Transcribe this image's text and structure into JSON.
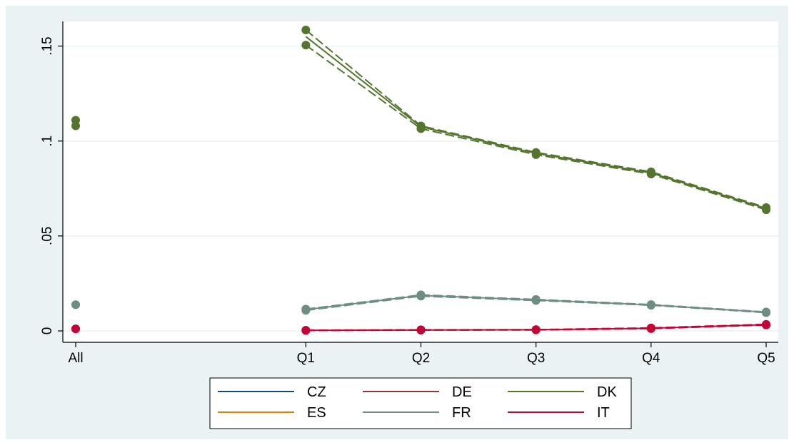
{
  "colors": {
    "outer_background": "#eaf2f3",
    "plot_background": "#ffffff",
    "grid": "#eaf2f3",
    "axis": "#000000"
  },
  "chart_data": {
    "type": "line",
    "title": "",
    "xlabel": "",
    "ylabel": "",
    "categories": [
      "All",
      "Q1",
      "Q2",
      "Q3",
      "Q4",
      "Q5"
    ],
    "x_positions": [
      -1,
      1,
      2,
      3,
      4,
      5
    ],
    "xlim": [
      -1,
      5
    ],
    "ylim": [
      -0.006,
      0.163
    ],
    "y_ticks": [
      0,
      0.05,
      0.1,
      0.15
    ],
    "y_tick_labels": [
      "0",
      ".05",
      ".1",
      ".15"
    ],
    "grid": true,
    "legend_position": "bottom",
    "series": [
      {
        "name": "CZ",
        "color": "#1a476f",
        "values": [
          null,
          null,
          null,
          null,
          null,
          null
        ],
        "upper": [
          null,
          null,
          null,
          null,
          null,
          null
        ],
        "lower": [
          null,
          null,
          null,
          null,
          null,
          null
        ]
      },
      {
        "name": "DE",
        "color": "#90353b",
        "values": [
          null,
          null,
          null,
          null,
          null,
          null
        ],
        "upper": [
          null,
          null,
          null,
          null,
          null,
          null
        ],
        "lower": [
          null,
          null,
          null,
          null,
          null,
          null
        ]
      },
      {
        "name": "DK",
        "color": "#55752f",
        "values": [
          null,
          0.155,
          0.1075,
          0.0935,
          0.0832,
          0.0645
        ],
        "upper": [
          0.111,
          0.1585,
          0.108,
          0.094,
          0.0838,
          0.065
        ],
        "lower": [
          0.108,
          0.1505,
          0.1065,
          0.0928,
          0.0826,
          0.0638
        ]
      },
      {
        "name": "ES",
        "color": "#e37e00",
        "values": [
          null,
          null,
          null,
          null,
          null,
          null
        ],
        "upper": [
          null,
          null,
          null,
          null,
          null,
          null
        ],
        "lower": [
          null,
          null,
          null,
          null,
          null,
          null
        ]
      },
      {
        "name": "FR",
        "color": "#6e8e84",
        "values": [
          null,
          0.0112,
          0.0187,
          0.0163,
          0.0137,
          0.0098
        ],
        "upper": [
          0.0138,
          0.0115,
          0.019,
          0.0166,
          0.0139,
          0.01
        ],
        "lower": [
          0.0138,
          0.0108,
          0.0183,
          0.016,
          0.0135,
          0.0096
        ]
      },
      {
        "name": "IT",
        "color": "#c10534",
        "values": [
          null,
          0.0003,
          0.0005,
          0.0006,
          0.0014,
          0.0033
        ],
        "upper": [
          0.0011,
          0.0004,
          0.0006,
          0.0007,
          0.0016,
          0.0035
        ],
        "lower": [
          0.0011,
          0.0002,
          0.0004,
          0.0005,
          0.0012,
          0.0031
        ]
      }
    ]
  }
}
